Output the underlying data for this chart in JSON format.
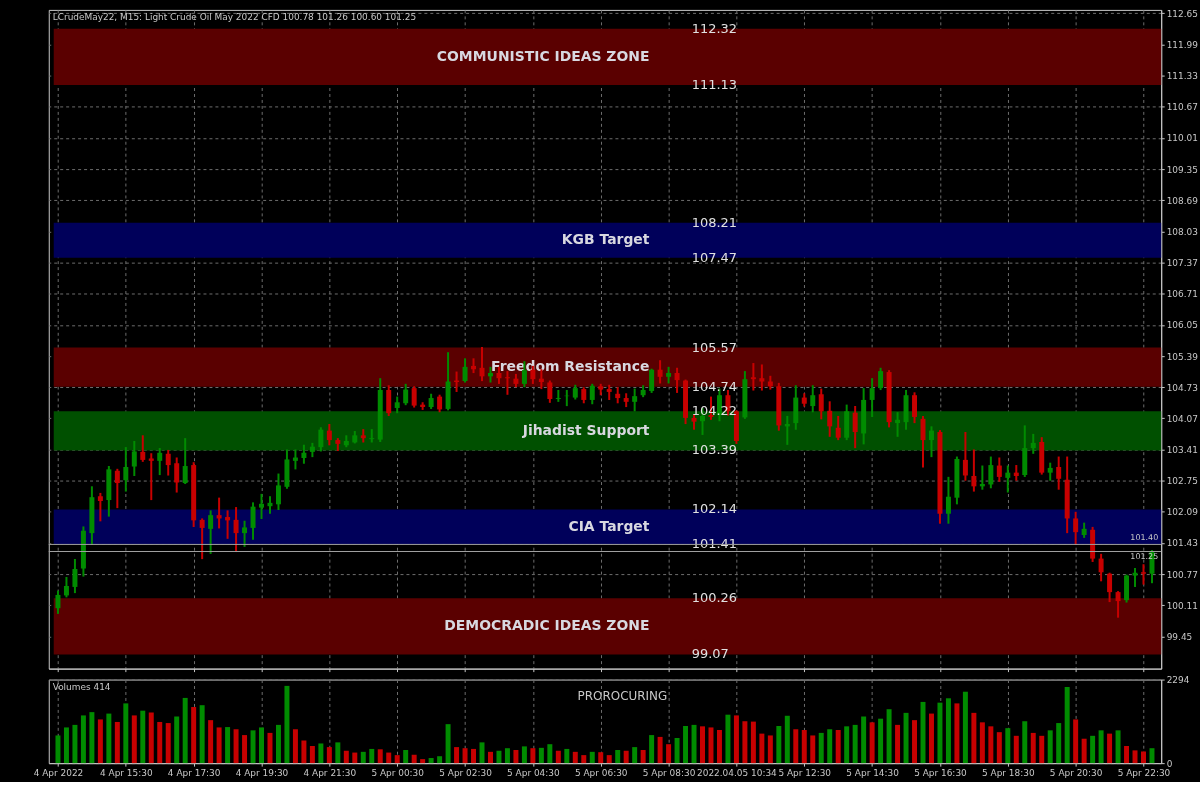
{
  "chart_data": [
    {
      "type": "candlestick",
      "title": "LCrudeMay22, M15:  Light Crude Oil May 2022 CFD  100.78 101.26 100.60 101.25",
      "categories": [
        null,
        null,
        null,
        null,
        null,
        null,
        null,
        null,
        null,
        null,
        null,
        null,
        null,
        null,
        null,
        null,
        null,
        null,
        null,
        null,
        null,
        null,
        null,
        null,
        null,
        null,
        null,
        null,
        null,
        null,
        null,
        null,
        null,
        null,
        null,
        null,
        null,
        null,
        null,
        null,
        null,
        null,
        null,
        null,
        null,
        null,
        null,
        null,
        null,
        null,
        null,
        null,
        null,
        null,
        null,
        null,
        null,
        null,
        null,
        null,
        null,
        null,
        null,
        null,
        null,
        null,
        null,
        null,
        null,
        null,
        null,
        null,
        null,
        null,
        null,
        null,
        null,
        null,
        null,
        null,
        null,
        null,
        null,
        null,
        null,
        null,
        null,
        null,
        null,
        null,
        null,
        null,
        null,
        null,
        null,
        null,
        null,
        null,
        null,
        null,
        null,
        null,
        null,
        null,
        null,
        null,
        null,
        null,
        null,
        null,
        null,
        null,
        null,
        null,
        null,
        null,
        null,
        null,
        null,
        null,
        null,
        null,
        null,
        null,
        null,
        null,
        null,
        null,
        null,
        null
      ],
      "ohlc": [
        [
          100.05,
          100.4,
          99.95,
          100.33
        ],
        [
          100.32,
          100.69,
          100.3,
          100.52
        ],
        [
          100.5,
          101.07,
          100.39,
          100.88
        ],
        [
          100.89,
          101.76,
          100.74,
          101.69
        ],
        [
          101.64,
          102.61,
          101.42,
          102.4
        ],
        [
          102.42,
          102.47,
          101.91,
          102.32
        ],
        [
          102.34,
          103.04,
          102.01,
          102.99
        ],
        [
          102.96,
          102.98,
          102.19,
          102.7
        ],
        [
          102.76,
          103.44,
          102.54,
          103.04
        ],
        [
          103.05,
          103.57,
          102.87,
          103.37
        ],
        [
          103.36,
          103.69,
          103.17,
          103.19
        ],
        [
          103.22,
          103.31,
          102.36,
          103.17
        ],
        [
          103.17,
          103.42,
          102.89,
          103.34
        ],
        [
          103.32,
          103.38,
          102.88,
          103.08
        ],
        [
          103.12,
          103.22,
          102.52,
          102.71
        ],
        [
          102.7,
          103.63,
          102.7,
          103.06
        ],
        [
          103.08,
          103.12,
          101.79,
          101.91
        ],
        [
          101.92,
          101.93,
          101.11,
          101.75
        ],
        [
          101.73,
          102.1,
          101.22,
          102.02
        ],
        [
          102.02,
          102.37,
          101.76,
          101.95
        ],
        [
          101.98,
          102.1,
          101.54,
          101.91
        ],
        [
          101.92,
          102.17,
          101.26,
          101.64
        ],
        [
          101.64,
          101.88,
          101.37,
          101.76
        ],
        [
          101.75,
          102.27,
          101.52,
          102.2
        ],
        [
          102.18,
          102.45,
          101.96,
          102.26
        ],
        [
          102.21,
          102.4,
          102.07,
          102.28
        ],
        [
          102.25,
          102.88,
          102.15,
          102.65
        ],
        [
          102.62,
          103.39,
          102.6,
          103.2
        ],
        [
          103.17,
          103.39,
          103.01,
          103.24
        ],
        [
          103.23,
          103.49,
          103.13,
          103.34
        ],
        [
          103.36,
          103.53,
          103.27,
          103.47
        ],
        [
          103.46,
          103.86,
          103.39,
          103.83
        ],
        [
          103.81,
          103.93,
          103.52,
          103.61
        ],
        [
          103.61,
          103.63,
          103.4,
          103.53
        ],
        [
          103.5,
          103.69,
          103.48,
          103.59
        ],
        [
          103.56,
          103.78,
          103.56,
          103.71
        ],
        [
          103.71,
          103.82,
          103.58,
          103.65
        ],
        [
          103.63,
          103.82,
          103.58,
          103.65
        ],
        [
          103.62,
          104.9,
          103.59,
          104.67
        ],
        [
          104.67,
          104.75,
          104.14,
          104.18
        ],
        [
          104.29,
          104.51,
          104.2,
          104.41
        ],
        [
          104.39,
          104.78,
          104.37,
          104.68
        ],
        [
          104.71,
          104.73,
          104.32,
          104.34
        ],
        [
          104.36,
          104.39,
          104.27,
          104.31
        ],
        [
          104.31,
          104.57,
          104.29,
          104.5
        ],
        [
          104.53,
          104.55,
          104.22,
          104.26
        ],
        [
          104.27,
          105.45,
          104.26,
          104.85
        ],
        [
          104.87,
          105.04,
          104.65,
          104.84
        ],
        [
          104.86,
          105.32,
          104.85,
          105.16
        ],
        [
          105.18,
          105.32,
          105.05,
          105.11
        ],
        [
          105.14,
          105.56,
          104.88,
          104.96
        ],
        [
          104.96,
          105.14,
          104.85,
          105.03
        ],
        [
          105.03,
          105.14,
          104.82,
          104.92
        ],
        [
          104.94,
          105.05,
          104.59,
          104.92
        ],
        [
          104.91,
          104.99,
          104.75,
          104.8
        ],
        [
          104.8,
          105.26,
          104.75,
          105.09
        ],
        [
          105.1,
          105.16,
          104.82,
          104.9
        ],
        [
          104.91,
          105.09,
          104.71,
          104.84
        ],
        [
          104.83,
          104.85,
          104.42,
          104.48
        ],
        [
          104.48,
          104.65,
          104.44,
          104.5
        ],
        [
          104.54,
          104.65,
          104.35,
          104.55
        ],
        [
          104.51,
          104.76,
          104.49,
          104.71
        ],
        [
          104.69,
          104.71,
          104.41,
          104.46
        ],
        [
          104.46,
          104.78,
          104.39,
          104.76
        ],
        [
          104.75,
          104.78,
          104.58,
          104.68
        ],
        [
          104.69,
          104.76,
          104.48,
          104.63
        ],
        [
          104.59,
          104.71,
          104.41,
          104.5
        ],
        [
          104.5,
          104.58,
          104.33,
          104.42
        ],
        [
          104.42,
          104.68,
          104.24,
          104.54
        ],
        [
          104.56,
          104.75,
          104.54,
          104.67
        ],
        [
          104.65,
          105.1,
          104.63,
          105.1
        ],
        [
          105.1,
          105.28,
          104.83,
          104.95
        ],
        [
          104.95,
          105.14,
          104.83,
          105.03
        ],
        [
          105.03,
          105.12,
          104.63,
          104.88
        ],
        [
          104.87,
          104.87,
          103.97,
          104.08
        ],
        [
          104.08,
          104.14,
          103.85,
          104.0
        ],
        [
          104.01,
          104.27,
          103.74,
          104.12
        ],
        [
          104.14,
          104.51,
          104.06,
          104.1
        ],
        [
          104.14,
          104.68,
          104.03,
          104.56
        ],
        [
          104.56,
          104.65,
          104.15,
          104.22
        ],
        [
          104.22,
          104.22,
          103.55,
          103.59
        ],
        [
          104.09,
          105.05,
          104.08,
          104.9
        ],
        [
          104.94,
          105.22,
          104.68,
          104.9
        ],
        [
          104.92,
          105.19,
          104.68,
          104.85
        ],
        [
          104.85,
          104.95,
          104.7,
          104.75
        ],
        [
          104.75,
          104.8,
          103.83,
          103.92
        ],
        [
          103.9,
          104.1,
          103.53,
          103.95
        ],
        [
          103.97,
          104.75,
          103.85,
          104.51
        ],
        [
          104.51,
          104.58,
          104.34,
          104.38
        ],
        [
          104.33,
          104.75,
          104.22,
          104.56
        ],
        [
          104.58,
          104.68,
          104.07,
          104.22
        ],
        [
          104.23,
          104.41,
          103.7,
          103.9
        ],
        [
          103.87,
          104.1,
          103.63,
          103.66
        ],
        [
          103.66,
          104.34,
          103.63,
          104.22
        ],
        [
          104.19,
          104.31,
          103.46,
          103.78
        ],
        [
          103.75,
          104.69,
          103.54,
          104.46
        ],
        [
          104.46,
          104.9,
          104.12,
          104.71
        ],
        [
          104.71,
          105.12,
          104.69,
          105.07
        ],
        [
          105.05,
          105.07,
          103.9,
          103.99
        ],
        [
          103.97,
          104.18,
          103.7,
          104.04
        ],
        [
          103.99,
          104.65,
          103.85,
          104.56
        ],
        [
          104.56,
          104.6,
          103.99,
          104.1
        ],
        [
          104.06,
          104.1,
          103.05,
          103.61
        ],
        [
          103.61,
          103.88,
          103.27,
          103.81
        ],
        [
          103.78,
          103.8,
          101.86,
          102.05
        ],
        [
          102.05,
          102.81,
          101.86,
          102.41
        ],
        [
          102.39,
          103.24,
          102.27,
          103.21
        ],
        [
          103.19,
          103.76,
          102.77,
          102.86
        ],
        [
          102.85,
          103.39,
          102.54,
          102.63
        ],
        [
          102.63,
          103.05,
          102.58,
          102.68
        ],
        [
          102.67,
          103.24,
          102.61,
          103.08
        ],
        [
          103.07,
          103.22,
          102.75,
          102.83
        ],
        [
          102.81,
          103.05,
          102.52,
          102.92
        ],
        [
          102.92,
          103.06,
          102.77,
          102.85
        ],
        [
          102.87,
          103.9,
          102.85,
          103.44
        ],
        [
          103.44,
          103.72,
          103.34,
          103.55
        ],
        [
          103.57,
          103.65,
          102.9,
          102.92
        ],
        [
          102.92,
          103.11,
          102.77,
          103.02
        ],
        [
          103.04,
          103.24,
          102.58,
          102.79
        ],
        [
          102.77,
          103.24,
          101.66,
          101.95
        ],
        [
          101.95,
          102.07,
          101.41,
          101.66
        ],
        [
          101.6,
          101.84,
          101.56,
          101.73
        ],
        [
          101.71,
          101.75,
          101.05,
          101.1
        ],
        [
          101.1,
          101.18,
          100.64,
          100.81
        ],
        [
          100.78,
          100.78,
          100.2,
          100.39
        ],
        [
          100.39,
          100.39,
          99.87,
          100.2
        ],
        [
          100.22,
          100.74,
          100.19,
          100.74
        ],
        [
          100.74,
          100.88,
          100.52,
          100.8
        ],
        [
          100.81,
          100.96,
          100.57,
          100.78
        ],
        [
          100.78,
          101.26,
          100.6,
          101.25
        ]
      ],
      "colors": [
        "#008c00",
        "#008c00",
        "#008c00",
        "#008c00",
        "#008c00",
        "#c80000",
        "#008c00",
        "#c80000",
        "#008c00",
        "#008c00",
        "#c80000",
        "#c80000",
        "#008c00",
        "#c80000",
        "#c80000",
        "#008c00",
        "#c80000",
        "#c80000",
        "#008c00",
        "#c80000",
        "#c80000",
        "#c80000",
        "#008c00",
        "#008c00",
        "#008c00",
        "#008c00",
        "#008c00",
        "#008c00",
        "#008c00",
        "#008c00",
        "#008c00",
        "#008c00",
        "#c80000",
        "#c80000",
        "#008c00",
        "#008c00",
        "#c80000",
        "#008c00",
        "#008c00",
        "#c80000",
        "#008c00",
        "#008c00",
        "#c80000",
        "#c80000",
        "#008c00",
        "#c80000",
        "#008c00",
        "#c80000",
        "#008c00",
        "#c80000",
        "#c80000",
        "#008c00",
        "#c80000",
        "#c80000",
        "#c80000",
        "#008c00",
        "#c80000",
        "#c80000",
        "#c80000",
        "#008c00",
        "#008c00",
        "#008c00",
        "#c80000",
        "#008c00",
        "#c80000",
        "#c80000",
        "#c80000",
        "#c80000",
        "#008c00",
        "#008c00",
        "#008c00",
        "#c80000",
        "#008c00",
        "#c80000",
        "#c80000",
        "#c80000",
        "#008c00",
        "#c80000",
        "#008c00",
        "#c80000",
        "#c80000",
        "#008c00",
        "#c80000",
        "#c80000",
        "#c80000",
        "#c80000",
        "#008c00",
        "#008c00",
        "#c80000",
        "#008c00",
        "#c80000",
        "#c80000",
        "#c80000",
        "#008c00",
        "#c80000",
        "#008c00",
        "#008c00",
        "#008c00",
        "#c80000",
        "#008c00",
        "#008c00",
        "#c80000",
        "#c80000",
        "#008c00",
        "#c80000",
        "#008c00",
        "#008c00",
        "#c80000",
        "#c80000",
        "#008c00",
        "#008c00",
        "#c80000",
        "#008c00",
        "#c80000",
        "#008c00",
        "#008c00",
        "#c80000",
        "#008c00",
        "#c80000",
        "#c80000",
        "#c80000",
        "#008c00",
        "#c80000",
        "#c80000",
        "#c80000",
        "#c80000",
        "#008c00",
        "#008c00",
        "#c80000",
        "#008c00"
      ],
      "ylim": [
        98.77,
        112.72
      ],
      "yticks": [
        99.45,
        100.11,
        100.77,
        101.43,
        102.09,
        102.75,
        103.41,
        104.07,
        104.73,
        105.39,
        106.05,
        106.71,
        107.37,
        108.03,
        108.69,
        109.35,
        110.01,
        110.67,
        111.33,
        111.99,
        112.65
      ],
      "bands": [
        {
          "axis": "y",
          "from": 111.13,
          "to": 112.32,
          "label": "COMMUNISTIC IDEAS ZONE",
          "color": "#5a0000"
        },
        {
          "axis": "y",
          "from": 107.47,
          "to": 108.21,
          "label": "KGB Target",
          "color": "#00005a"
        },
        {
          "axis": "y",
          "from": 104.74,
          "to": 105.57,
          "label": "Freedom Resistance",
          "color": "#5a0000"
        },
        {
          "axis": "y",
          "from": 103.39,
          "to": 104.22,
          "label": "Jihadist Support",
          "color": "#005000"
        },
        {
          "axis": "y",
          "from": 101.41,
          "to": 102.14,
          "label": "CIA Target",
          "color": "#00005a"
        },
        {
          "axis": "y",
          "from": 99.07,
          "to": 100.26,
          "label": "DEMOCRADIC IDEAS ZONE",
          "color": "#5a0000"
        }
      ],
      "annotations": [
        {
          "text": "112.32",
          "y": 112.32
        },
        {
          "text": "111.13",
          "y": 111.13
        },
        {
          "text": "108.21",
          "y": 108.21
        },
        {
          "text": "107.47",
          "y": 107.47
        },
        {
          "text": "105.57",
          "y": 105.57
        },
        {
          "text": "104.74",
          "y": 104.74
        },
        {
          "text": "104.22",
          "y": 104.22
        },
        {
          "text": "103.39",
          "y": 103.39
        },
        {
          "text": "102.14",
          "y": 102.14
        },
        {
          "text": "101.41",
          "y": 101.41
        },
        {
          "text": "100.26",
          "y": 100.26
        },
        {
          "text": "99.07",
          "y": 99.07
        }
      ],
      "ref_lines": [
        {
          "axis": "y",
          "value": 101.4,
          "label": "101.40",
          "color": "#a0a0a0"
        },
        {
          "axis": "y",
          "value": 101.25,
          "label": "101.25",
          "color": "#a0a0a0"
        }
      ],
      "grid": true,
      "tick_labels": "y"
    },
    {
      "type": "bar",
      "title": "Volumes 414",
      "annotations": [
        "PROROCURING"
      ],
      "categories": [
        "4 Apr 2022",
        null,
        null,
        null,
        null,
        null,
        null,
        null,
        "4 Apr 15:30",
        null,
        null,
        null,
        null,
        null,
        null,
        null,
        "4 Apr 17:30",
        null,
        null,
        null,
        null,
        null,
        null,
        null,
        "4 Apr 19:30",
        null,
        null,
        null,
        null,
        null,
        null,
        null,
        "4 Apr 21:30",
        null,
        null,
        null,
        null,
        null,
        null,
        null,
        "5 Apr 00:30",
        null,
        null,
        null,
        null,
        null,
        null,
        null,
        "5 Apr 02:30",
        null,
        null,
        null,
        null,
        null,
        null,
        null,
        "5 Apr 04:30",
        null,
        null,
        null,
        null,
        null,
        null,
        null,
        "5 Apr 06:30",
        null,
        null,
        null,
        null,
        null,
        null,
        null,
        "5 Apr 08:30",
        null,
        null,
        null,
        null,
        null,
        null,
        null,
        "2022.04.05 10:34",
        null,
        null,
        null,
        null,
        null,
        null,
        null,
        "5 Apr 12:30",
        null,
        null,
        null,
        null,
        null,
        null,
        null,
        "5 Apr 14:30",
        null,
        null,
        null,
        null,
        null,
        null,
        null,
        "5 Apr 16:30",
        null,
        null,
        null,
        null,
        null,
        null,
        null,
        "5 Apr 18:30",
        null,
        null,
        null,
        null,
        null,
        null,
        null,
        "5 Apr 20:30",
        null,
        null,
        null,
        null,
        null,
        null,
        null,
        "5 Apr 22:30",
        null
      ],
      "values": [
        760,
        980,
        1050,
        1310,
        1400,
        1200,
        1360,
        1130,
        1640,
        1310,
        1440,
        1390,
        1130,
        1100,
        1280,
        1790,
        1540,
        1590,
        1180,
        980,
        990,
        930,
        770,
        900,
        980,
        830,
        1050,
        2120,
        930,
        620,
        470,
        540,
        440,
        570,
        340,
        290,
        310,
        390,
        380,
        290,
        220,
        360,
        230,
        110,
        140,
        190,
        1070,
        440,
        410,
        390,
        570,
        310,
        340,
        410,
        360,
        460,
        410,
        420,
        520,
        340,
        390,
        310,
        220,
        310,
        300,
        220,
        360,
        340,
        440,
        360,
        770,
        720,
        520,
        690,
        1020,
        1050,
        1010,
        980,
        910,
        1330,
        1310,
        1150,
        1140,
        810,
        760,
        1020,
        1300,
        930,
        910,
        760,
        830,
        930,
        910,
        1010,
        1050,
        1280,
        1120,
        1220,
        1480,
        1050,
        1380,
        1180,
        1680,
        1360,
        1660,
        1780,
        1640,
        1960,
        1380,
        1120,
        1010,
        850,
        960,
        750,
        1150,
        830,
        750,
        900,
        1100,
        2090,
        1200,
        670,
        750,
        900,
        810,
        900,
        470,
        350,
        320,
        410
      ],
      "colors": [
        "#008c00",
        "#008c00",
        "#008c00",
        "#008c00",
        "#008c00",
        "#c80000",
        "#008c00",
        "#c80000",
        "#008c00",
        "#c80000",
        "#008c00",
        "#c80000",
        "#c80000",
        "#c80000",
        "#008c00",
        "#008c00",
        "#c80000",
        "#008c00",
        "#c80000",
        "#c80000",
        "#008c00",
        "#c80000",
        "#c80000",
        "#008c00",
        "#008c00",
        "#c80000",
        "#008c00",
        "#008c00",
        "#c80000",
        "#c80000",
        "#c80000",
        "#008c00",
        "#c80000",
        "#008c00",
        "#c80000",
        "#c80000",
        "#008c00",
        "#008c00",
        "#c80000",
        "#c80000",
        "#c80000",
        "#008c00",
        "#c80000",
        "#c80000",
        "#008c00",
        "#008c00",
        "#008c00",
        "#c80000",
        "#c80000",
        "#c80000",
        "#008c00",
        "#c80000",
        "#008c00",
        "#008c00",
        "#c80000",
        "#008c00",
        "#c80000",
        "#008c00",
        "#008c00",
        "#c80000",
        "#008c00",
        "#c80000",
        "#c80000",
        "#008c00",
        "#c80000",
        "#c80000",
        "#008c00",
        "#c80000",
        "#008c00",
        "#c80000",
        "#008c00",
        "#c80000",
        "#c80000",
        "#008c00",
        "#008c00",
        "#008c00",
        "#c80000",
        "#c80000",
        "#c80000",
        "#008c00",
        "#c80000",
        "#c80000",
        "#c80000",
        "#c80000",
        "#c80000",
        "#008c00",
        "#008c00",
        "#c80000",
        "#c80000",
        "#c80000",
        "#008c00",
        "#008c00",
        "#c80000",
        "#008c00",
        "#008c00",
        "#008c00",
        "#c80000",
        "#008c00",
        "#008c00",
        "#c80000",
        "#008c00",
        "#c80000",
        "#008c00",
        "#c80000",
        "#008c00",
        "#008c00",
        "#c80000",
        "#008c00",
        "#c80000",
        "#c80000",
        "#c80000",
        "#c80000",
        "#008c00",
        "#c80000",
        "#008c00",
        "#c80000",
        "#c80000",
        "#008c00",
        "#008c00",
        "#008c00",
        "#c80000",
        "#c80000",
        "#008c00",
        "#008c00",
        "#c80000",
        "#008c00",
        "#c80000",
        "#c80000",
        "#c80000",
        "#008c00"
      ],
      "ylim": [
        0,
        2294
      ],
      "yticks": [
        0,
        2294
      ],
      "grid": true
    }
  ]
}
